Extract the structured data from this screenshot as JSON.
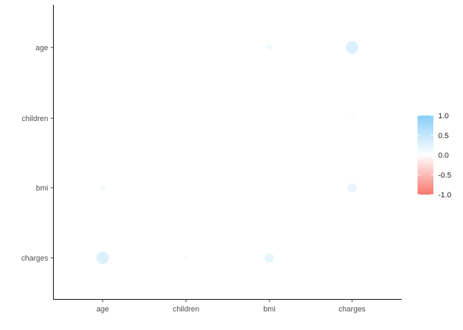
{
  "chart_data": {
    "type": "scatter",
    "subtype": "correlation-bubble",
    "x_categories": [
      "age",
      "children",
      "bmi",
      "charges"
    ],
    "y_categories": [
      "age",
      "children",
      "bmi",
      "charges"
    ],
    "xlabel": "",
    "ylabel": "",
    "title": "",
    "grid": false,
    "legend": {
      "placement": "right",
      "labels": [
        "1.0",
        "0.5",
        "0.0",
        "-0.5",
        "-1.0"
      ],
      "range": [
        -1,
        1
      ],
      "colors": {
        "low": "#f8766d",
        "mid": "#ffffff",
        "high": "#87cefa"
      }
    },
    "points": [
      {
        "x": "bmi",
        "y": "age",
        "corr": 0.11
      },
      {
        "x": "charges",
        "y": "age",
        "corr": 0.3
      },
      {
        "x": "charges",
        "y": "children",
        "corr": 0.07
      },
      {
        "x": "age",
        "y": "bmi",
        "corr": 0.11
      },
      {
        "x": "charges",
        "y": "bmi",
        "corr": 0.2
      },
      {
        "x": "age",
        "y": "charges",
        "corr": 0.3
      },
      {
        "x": "children",
        "y": "charges",
        "corr": 0.07
      },
      {
        "x": "bmi",
        "y": "charges",
        "corr": 0.2
      }
    ]
  }
}
